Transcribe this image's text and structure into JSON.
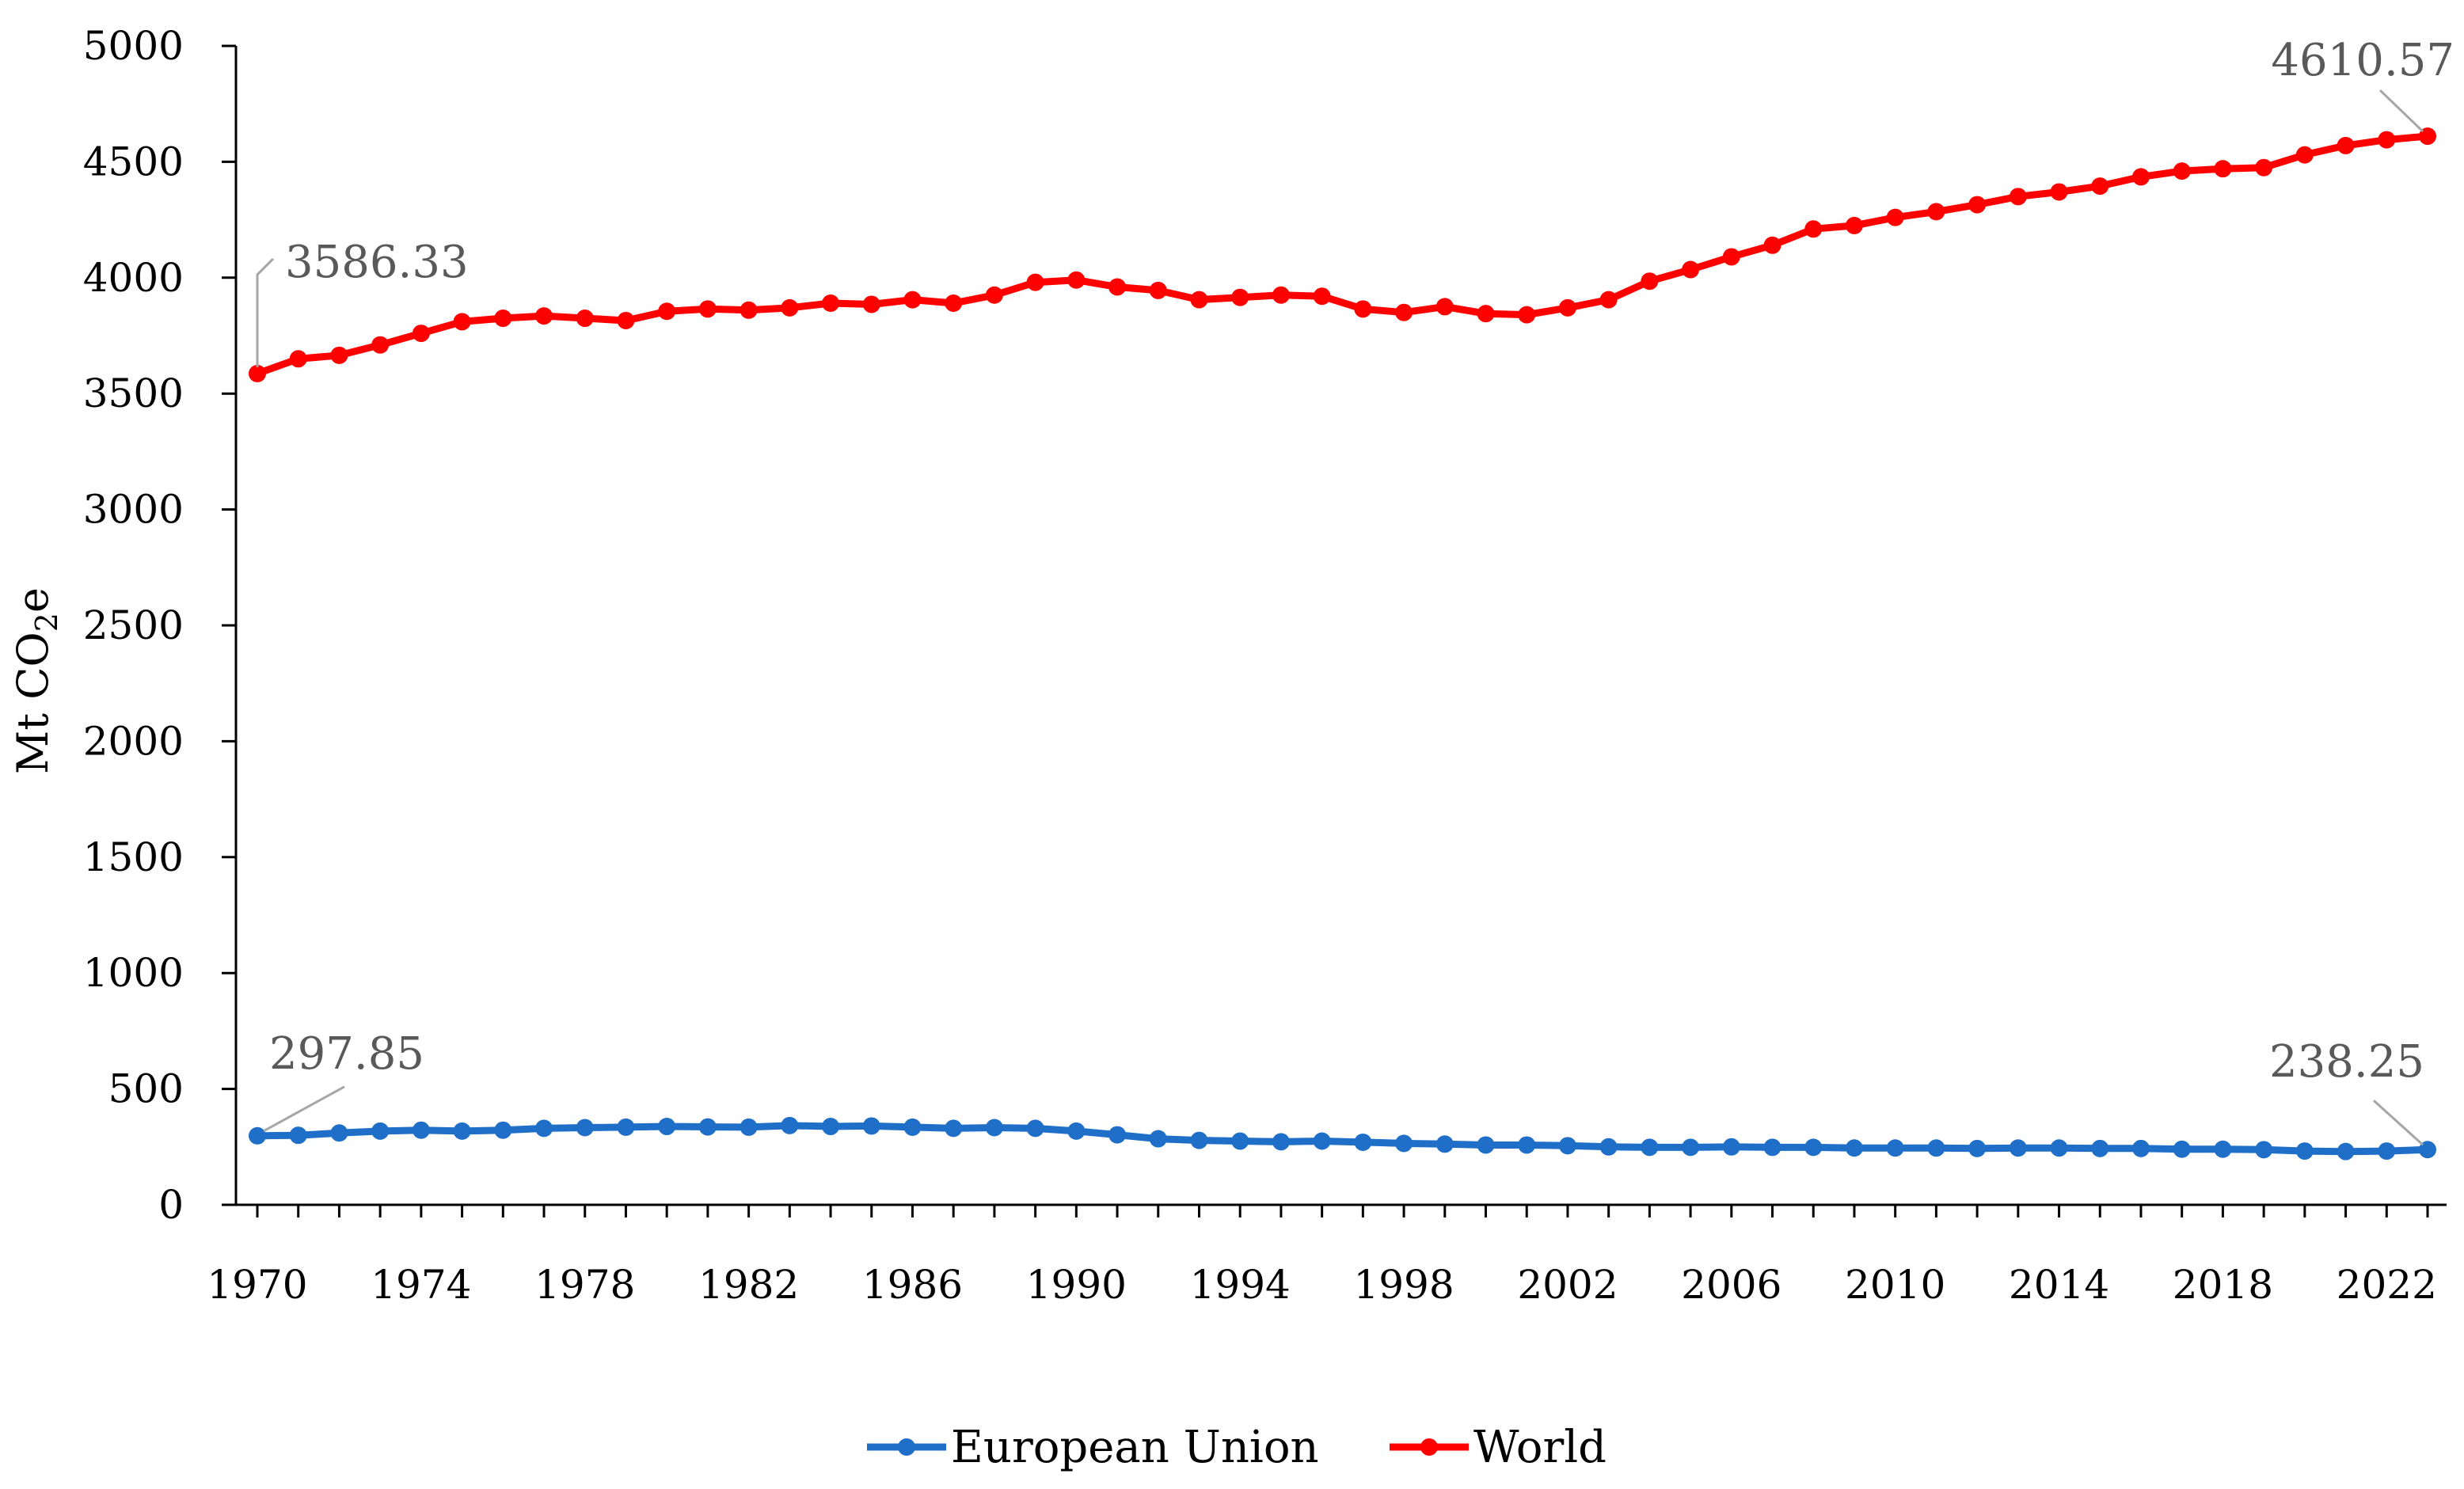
{
  "chart_data": {
    "type": "line",
    "title": "",
    "xlabel": "",
    "ylabel": "Mt CO",
    "ylabel_subscript": "2",
    "ylabel_suffix": "e",
    "ylim": [
      0,
      5000
    ],
    "yticks": [
      0,
      500,
      1000,
      1500,
      2000,
      2500,
      3000,
      3500,
      4000,
      4500,
      5000
    ],
    "ytick_labels": [
      "0",
      "500",
      "1000",
      "1500",
      "2000",
      "2500",
      "3000",
      "3500",
      "4000",
      "4500",
      "5000"
    ],
    "xticks": [
      1970,
      1974,
      1978,
      1982,
      1986,
      1990,
      1994,
      1998,
      2002,
      2006,
      2010,
      2014,
      2018,
      2022
    ],
    "xtick_labels": [
      "1970",
      "1974",
      "1978",
      "1982",
      "1986",
      "1990",
      "1994",
      "1998",
      "2002",
      "2006",
      "2010",
      "2014",
      "2018",
      "2022"
    ],
    "grid": false,
    "legend_position": "bottom-center",
    "x": [
      1970,
      1971,
      1972,
      1973,
      1974,
      1975,
      1976,
      1977,
      1978,
      1979,
      1980,
      1981,
      1982,
      1983,
      1984,
      1985,
      1986,
      1987,
      1988,
      1989,
      1990,
      1991,
      1992,
      1993,
      1994,
      1995,
      1996,
      1997,
      1998,
      1999,
      2000,
      2001,
      2002,
      2003,
      2004,
      2005,
      2006,
      2007,
      2008,
      2009,
      2010,
      2011,
      2012,
      2013,
      2014,
      2015,
      2016,
      2017,
      2018,
      2019,
      2020,
      2021,
      2022,
      2023
    ],
    "series": [
      {
        "name": "European Union",
        "color": "#1f6fc8",
        "values": [
          297.85,
          300,
          310,
          318,
          322,
          318,
          322,
          330,
          333,
          335,
          338,
          336,
          335,
          342,
          338,
          340,
          335,
          330,
          333,
          330,
          318,
          302,
          285,
          278,
          275,
          272,
          275,
          270,
          265,
          262,
          258,
          258,
          255,
          250,
          248,
          248,
          250,
          248,
          248,
          245,
          245,
          245,
          243,
          245,
          245,
          243,
          243,
          240,
          240,
          238,
          232,
          230,
          232,
          238.25
        ]
      },
      {
        "name": "World",
        "color": "#ff0000",
        "values": [
          3586.33,
          3650,
          3665,
          3710,
          3760,
          3810,
          3825,
          3835,
          3825,
          3815,
          3855,
          3865,
          3860,
          3870,
          3890,
          3885,
          3905,
          3890,
          3925,
          3980,
          3990,
          3960,
          3945,
          3905,
          3915,
          3925,
          3920,
          3865,
          3850,
          3875,
          3845,
          3840,
          3870,
          3905,
          3985,
          4035,
          4090,
          4140,
          4210,
          4225,
          4260,
          4285,
          4315,
          4350,
          4370,
          4395,
          4435,
          4460,
          4470,
          4475,
          4530,
          4570,
          4595,
          4610.57
        ]
      }
    ],
    "annotations": [
      {
        "series": "World",
        "x": 1970,
        "label": "3586.33"
      },
      {
        "series": "World",
        "x": 2023,
        "label": "4610.57"
      },
      {
        "series": "European Union",
        "x": 1970,
        "label": "297.85"
      },
      {
        "series": "European Union",
        "x": 2023,
        "label": "238.25"
      }
    ]
  }
}
